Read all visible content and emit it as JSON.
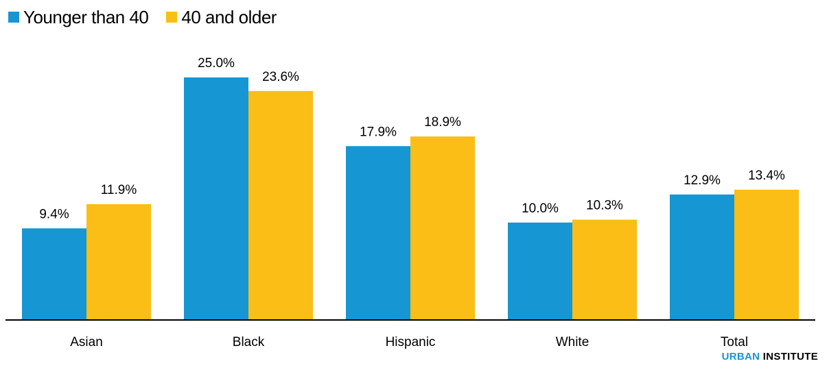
{
  "colors": {
    "series1": "#1696d2",
    "series2": "#fbbe16",
    "axis": "#000000"
  },
  "legend": {
    "items": [
      {
        "label": "Younger than 40",
        "color": "#1696d2"
      },
      {
        "label": "40 and older",
        "color": "#fbbe16"
      }
    ]
  },
  "brand": {
    "part1": "URBAN",
    "part2": "INSTITUTE"
  },
  "chart_data": {
    "type": "bar",
    "categories": [
      "Asian",
      "Black",
      "Hispanic",
      "White",
      "Total"
    ],
    "series": [
      {
        "name": "Younger than 40",
        "values": [
          9.4,
          25.0,
          17.9,
          10.0,
          12.9
        ],
        "labels": [
          "9.4%",
          "25.0%",
          "17.9%",
          "10.0%",
          "12.9%"
        ]
      },
      {
        "name": "40 and older",
        "values": [
          11.9,
          23.6,
          18.9,
          10.3,
          13.4
        ],
        "labels": [
          "11.9%",
          "23.6%",
          "18.9%",
          "10.3%",
          "13.4%"
        ]
      }
    ],
    "ylim": [
      0,
      25
    ],
    "grid": false,
    "legend_position": "top-left",
    "title": "",
    "xlabel": "",
    "ylabel": ""
  }
}
